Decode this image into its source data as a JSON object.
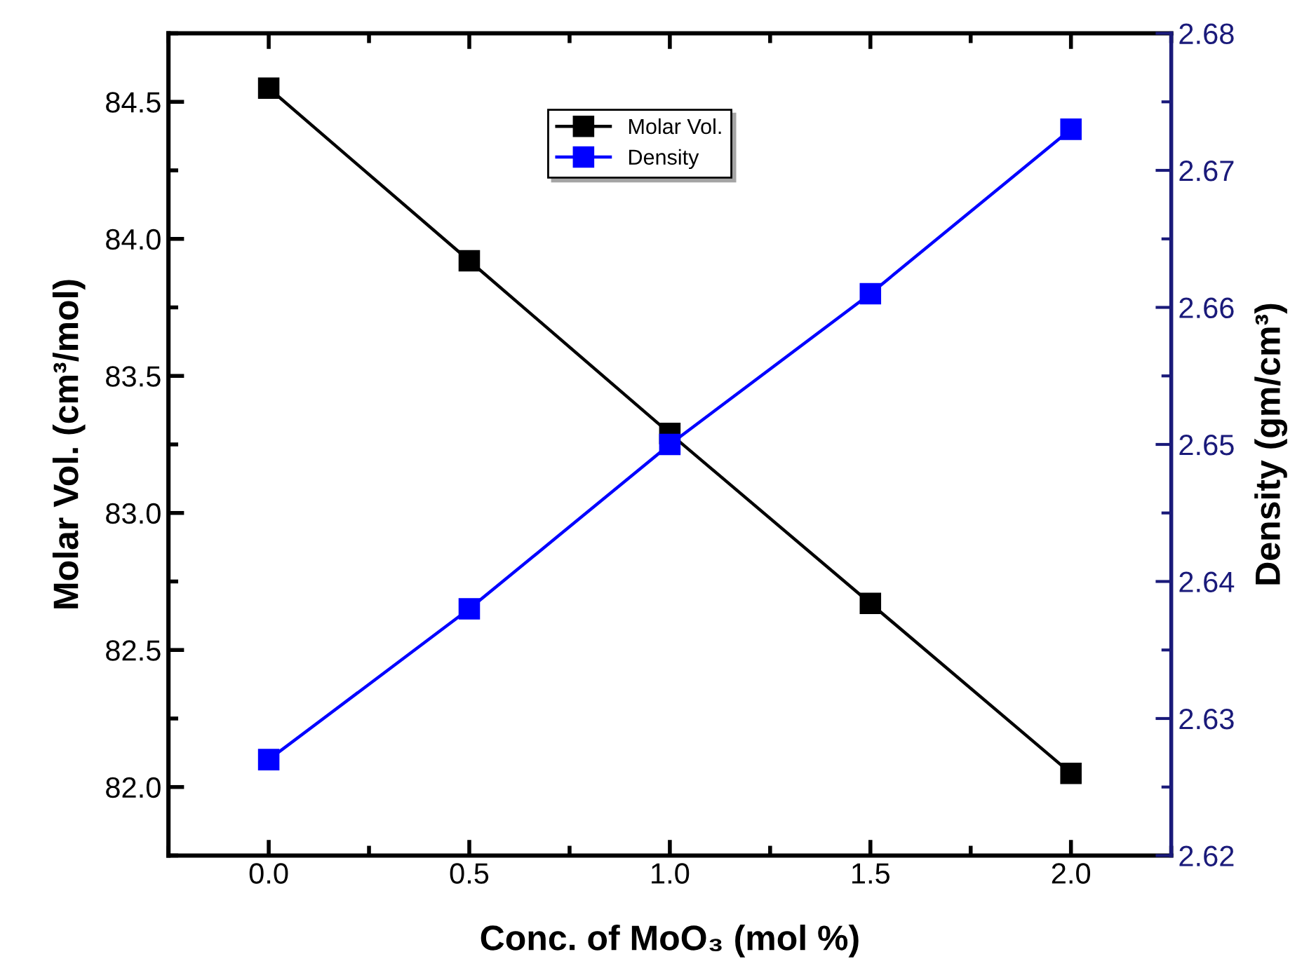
{
  "chart_data": {
    "type": "line",
    "xlabel": "Conc. of MoO₃ (mol %)",
    "ylabel": "Molar Vol. (cm³/mol)",
    "y2label": "Density (gm/cm³)",
    "x": [
      0.0,
      0.5,
      1.0,
      1.5,
      2.0
    ],
    "series": [
      {
        "name": "Molar Vol.",
        "color": "#000000",
        "values": [
          84.55,
          83.92,
          83.29,
          82.67,
          82.05
        ]
      },
      {
        "name": "Density",
        "color": "#0000ff",
        "axis": "y2",
        "values": [
          2.627,
          2.638,
          2.65,
          2.661,
          2.673
        ]
      }
    ],
    "xlim": [
      -0.25,
      2.25
    ],
    "xticks": [
      {
        "value": 0,
        "label": "0.0"
      },
      0.5,
      {
        "value": 1,
        "label": "1.0"
      },
      1.5,
      {
        "value": 2,
        "label": "2.0"
      }
    ],
    "ylim": [
      81.75,
      84.75
    ],
    "yticks": [
      {
        "value": 82,
        "label": "82.0"
      },
      82.5,
      {
        "value": 83,
        "label": "83.0"
      },
      83.5,
      {
        "value": 84,
        "label": "84.0"
      },
      84.5
    ],
    "y2lim": [
      2.62,
      2.68
    ],
    "y2ticks": [
      2.62,
      2.63,
      2.64,
      2.65,
      2.66,
      2.67,
      2.68
    ],
    "marker": "square",
    "line_style": "solid",
    "legend": "top",
    "grid": false
  }
}
